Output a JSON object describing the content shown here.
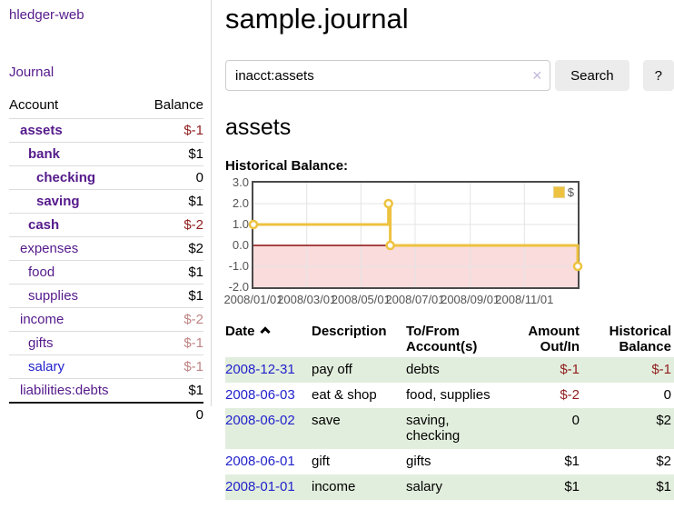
{
  "app": {
    "title": "hledger-web",
    "nav_journal": "Journal"
  },
  "sidebar": {
    "accounts_header": {
      "account": "Account",
      "balance": "Balance"
    },
    "accounts": [
      {
        "name": "assets",
        "depth": 1,
        "balance": "$-1",
        "bold": true,
        "neg": true
      },
      {
        "name": "bank",
        "depth": 2,
        "balance": "$1",
        "bold": true
      },
      {
        "name": "checking",
        "depth": 3,
        "balance": "0",
        "bold": true
      },
      {
        "name": "saving",
        "depth": 3,
        "balance": "$1",
        "bold": true
      },
      {
        "name": "cash",
        "depth": 2,
        "balance": "$-2",
        "bold": true,
        "neg": true
      },
      {
        "name": "expenses",
        "depth": 1,
        "balance": "$2"
      },
      {
        "name": "food",
        "depth": 2,
        "balance": "$1"
      },
      {
        "name": "supplies",
        "depth": 2,
        "balance": "$1"
      },
      {
        "name": "income",
        "depth": 1,
        "balance": "$-2",
        "faded": true
      },
      {
        "name": "gifts",
        "depth": 2,
        "balance": "$-1",
        "faded": true
      },
      {
        "name": "salary",
        "depth": 2,
        "balance": "$-1",
        "faded": true,
        "unvisited": true
      },
      {
        "name": "liabilities:debts",
        "depth": 1,
        "balance": "$1"
      }
    ],
    "total": "0"
  },
  "header": {
    "title": "sample.journal"
  },
  "search": {
    "value": "inacct:assets",
    "clear_icon": "✕",
    "button_label": "Search",
    "help_label": "?"
  },
  "account_page": {
    "title": "assets",
    "chart_label": "Historical Balance:"
  },
  "chart_data": {
    "type": "line",
    "step": true,
    "title": "Historical Balance",
    "series": [
      {
        "name": "$",
        "points": [
          [
            "2008-01-01",
            1
          ],
          [
            "2008-06-01",
            2
          ],
          [
            "2008-06-03",
            0
          ],
          [
            "2008-12-31",
            -1
          ]
        ]
      }
    ],
    "x_domain": [
      "2008-01-01",
      "2008-12-31"
    ],
    "ylim": [
      -2,
      3
    ],
    "yticks": [
      3,
      2,
      1,
      0,
      -1,
      -2
    ],
    "xticks": [
      "2008/01/01",
      "2008/03/01",
      "2008/05/01",
      "2008/07/01",
      "2008/09/01",
      "2008/11/01"
    ],
    "legend": {
      "label": "$",
      "position": "top-right"
    },
    "grid": true,
    "colors": {
      "line": "#edc240",
      "fill_negative": "#fadcdc",
      "zero_line": "#8c0d0d"
    }
  },
  "register": {
    "sort_icon": "chevron-up",
    "columns": [
      {
        "label": "Date"
      },
      {
        "label": "Description"
      },
      {
        "label": "To/From Account(s)"
      },
      {
        "label": "Amount Out/In",
        "align": "right"
      },
      {
        "label": "Historical Balance",
        "align": "right"
      }
    ],
    "rows": [
      {
        "date": "2008-12-31",
        "description": "pay off",
        "accounts": "debts",
        "amount": "$-1",
        "amount_neg": true,
        "balance": "$-1",
        "balance_neg": true
      },
      {
        "date": "2008-06-03",
        "description": "eat & shop",
        "accounts": "food, supplies",
        "amount": "$-2",
        "amount_neg": true,
        "balance": "0"
      },
      {
        "date": "2008-06-02",
        "description": "save",
        "accounts": "saving,\nchecking",
        "amount": "0",
        "balance": "$2"
      },
      {
        "date": "2008-06-01",
        "description": "gift",
        "accounts": "gifts",
        "amount": "$1",
        "balance": "$2"
      },
      {
        "date": "2008-01-01",
        "description": "income",
        "accounts": "salary",
        "amount": "$1",
        "balance": "$1"
      }
    ]
  }
}
